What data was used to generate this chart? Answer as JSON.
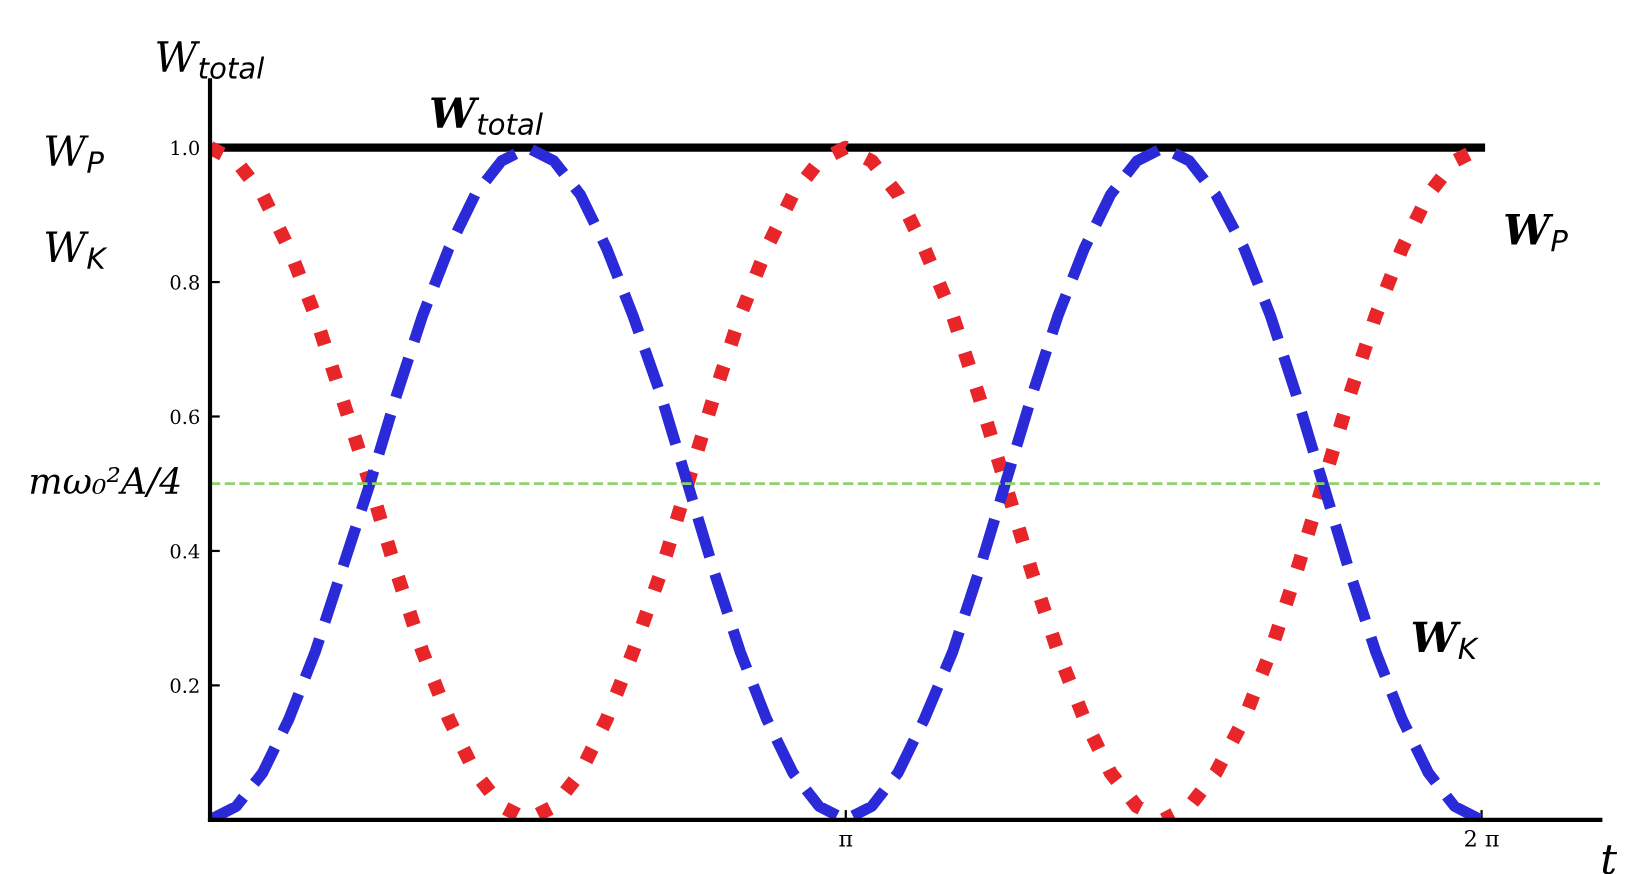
{
  "chart_data": {
    "type": "line",
    "ylabel": "W$_{total}$",
    "xlabel": "t",
    "xlim": [
      0,
      6.87
    ],
    "ylim": [
      0,
      1.1
    ],
    "xticks": [
      {
        "value": 3.1416,
        "label": "π"
      },
      {
        "value": 6.2832,
        "label": "2 π"
      }
    ],
    "yticks": [
      0.2,
      0.4,
      0.6,
      0.8,
      {
        "value": 1.0,
        "label": "1.0"
      }
    ],
    "grid": false,
    "legend": false,
    "series": [
      {
        "color": "#000000",
        "line_style": "solid",
        "x": [
          0,
          6.28
        ],
        "values": [
          1,
          1
        ]
      },
      {
        "color": "#e8262a",
        "line_style": "dotted",
        "x": [
          0,
          0.13,
          0.26,
          0.39,
          0.52,
          0.65,
          0.79,
          0.92,
          1.05,
          1.18,
          1.31,
          1.44,
          1.57,
          1.7,
          1.83,
          1.96,
          2.09,
          2.23,
          2.36,
          2.49,
          2.62,
          2.75,
          2.88,
          3.01,
          3.14,
          3.27,
          3.4,
          3.53,
          3.67,
          3.8,
          3.93,
          4.06,
          4.19,
          4.32,
          4.45,
          4.58,
          4.71,
          4.84,
          4.97,
          5.11,
          5.24,
          5.37,
          5.5,
          5.63,
          5.76,
          5.89,
          6.02,
          6.15,
          6.28
        ],
        "values": [
          1,
          0.98,
          0.93,
          0.85,
          0.75,
          0.63,
          0.5,
          0.37,
          0.25,
          0.15,
          0.07,
          0.02,
          0,
          0.02,
          0.07,
          0.15,
          0.25,
          0.37,
          0.5,
          0.63,
          0.75,
          0.85,
          0.93,
          0.98,
          1,
          0.98,
          0.93,
          0.85,
          0.75,
          0.63,
          0.5,
          0.37,
          0.25,
          0.15,
          0.07,
          0.02,
          0,
          0.02,
          0.07,
          0.15,
          0.25,
          0.37,
          0.5,
          0.63,
          0.75,
          0.85,
          0.93,
          0.98,
          1
        ]
      },
      {
        "color": "#2a2ad8",
        "line_style": "dashed",
        "x": [
          0,
          0.13,
          0.26,
          0.39,
          0.52,
          0.65,
          0.79,
          0.92,
          1.05,
          1.18,
          1.31,
          1.44,
          1.57,
          1.7,
          1.83,
          1.96,
          2.09,
          2.23,
          2.36,
          2.49,
          2.62,
          2.75,
          2.88,
          3.01,
          3.14,
          3.27,
          3.4,
          3.53,
          3.67,
          3.8,
          3.93,
          4.06,
          4.19,
          4.32,
          4.45,
          4.58,
          4.71,
          4.84,
          4.97,
          5.11,
          5.24,
          5.37,
          5.5,
          5.63,
          5.76,
          5.89,
          6.02,
          6.15,
          6.28
        ],
        "values": [
          0,
          0.02,
          0.07,
          0.15,
          0.25,
          0.37,
          0.5,
          0.63,
          0.75,
          0.85,
          0.93,
          0.98,
          1,
          0.98,
          0.93,
          0.85,
          0.75,
          0.63,
          0.5,
          0.37,
          0.25,
          0.15,
          0.07,
          0.02,
          0,
          0.02,
          0.07,
          0.15,
          0.25,
          0.37,
          0.5,
          0.63,
          0.75,
          0.85,
          0.93,
          0.98,
          1,
          0.98,
          0.93,
          0.85,
          0.75,
          0.63,
          0.5,
          0.37,
          0.25,
          0.15,
          0.07,
          0.02,
          0
        ]
      }
    ],
    "ref_lines": [
      {
        "axis": "y",
        "value": 0.5,
        "label": "mω₀²A/4",
        "color": "#8fd16a",
        "line_style": "dashed"
      }
    ],
    "annotations": [
      {
        "text": "W$_{total}$",
        "x": 1.0,
        "y": 1.0
      },
      {
        "text": "W$_{P}$",
        "x": 6.28,
        "y": 1
      },
      {
        "text": "W$_{K}$",
        "x": 5.85,
        "y": 0.22
      },
      "W$_{P}$",
      "W$_{K}$"
    ]
  }
}
